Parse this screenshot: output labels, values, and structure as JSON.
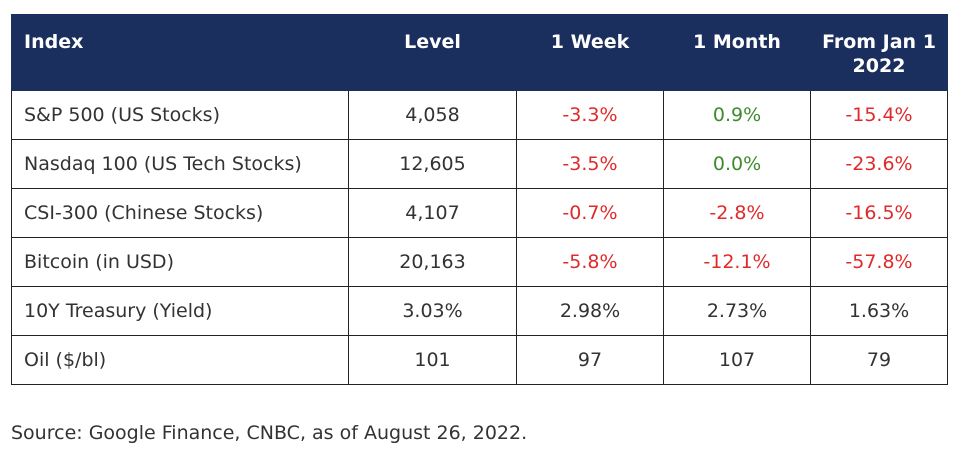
{
  "table": {
    "headers": [
      "Index",
      "Level",
      "1 Week",
      "1 Month",
      "From Jan 1 2022"
    ],
    "rows": [
      {
        "index": "S&P 500 (US Stocks)",
        "level": "4,058",
        "week": "-3.3%",
        "month": "0.9%",
        "ytd": "-15.4%"
      },
      {
        "index": "Nasdaq 100 (US Tech Stocks)",
        "level": "12,605",
        "week": "-3.5%",
        "month": "0.0%",
        "ytd": "-23.6%"
      },
      {
        "index": "CSI-300 (Chinese Stocks)",
        "level": "4,107",
        "week": "-0.7%",
        "month": "-2.8%",
        "ytd": "-16.5%"
      },
      {
        "index": "Bitcoin (in USD)",
        "level": "20,163",
        "week": "-5.8%",
        "month": "-12.1%",
        "ytd": "-57.8%"
      },
      {
        "index": "10Y Treasury (Yield)",
        "level": "3.03%",
        "week": "2.98%",
        "month": "2.73%",
        "ytd": "1.63%"
      },
      {
        "index": "Oil ($/bl)",
        "level": "101",
        "week": "97",
        "month": "107",
        "ytd": "79"
      }
    ]
  },
  "source": "Source: Google Finance, CNBC, as of August 26, 2022.",
  "colors": {
    "header_bg": "#1b2f5e",
    "header_text": "#ffffff",
    "negative": "#e02a2a",
    "positive": "#3f8a2e",
    "neutral": "#333333"
  }
}
